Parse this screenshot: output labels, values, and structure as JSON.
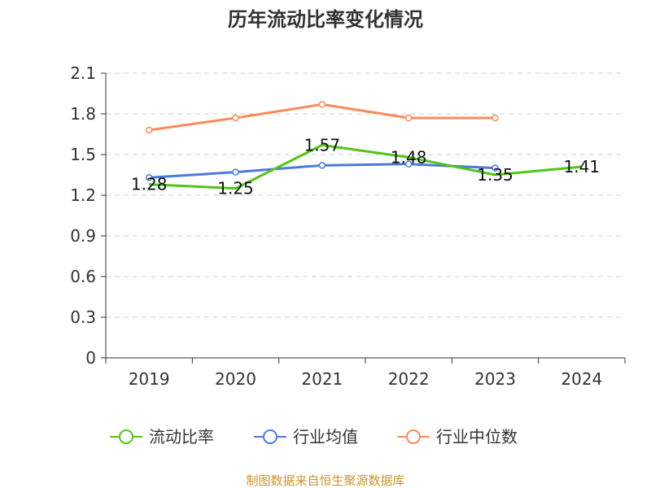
{
  "chart_data": {
    "type": "line",
    "title": "历年流动比率变化情况",
    "categories": [
      "2019",
      "2020",
      "2021",
      "2022",
      "2023",
      "2024"
    ],
    "y_ticks": [
      "0",
      "0.3",
      "0.6",
      "0.9",
      "1.2",
      "1.5",
      "1.8",
      "2.1"
    ],
    "ylim": [
      0,
      2.1
    ],
    "grid": true,
    "legend_position": "bottom",
    "series": [
      {
        "name": "流动比率",
        "color": "#52c41a",
        "values": [
          1.28,
          1.25,
          1.57,
          1.48,
          1.35,
          1.41
        ],
        "labels": [
          "1.28",
          "1.25",
          "1.57",
          "1.48",
          "1.35",
          "1.41"
        ]
      },
      {
        "name": "行业均值",
        "color": "#4a7bd8",
        "values": [
          1.33,
          1.37,
          1.42,
          1.43,
          1.4,
          null
        ]
      },
      {
        "name": "行业中位数",
        "color": "#f78c5a",
        "values": [
          1.68,
          1.77,
          1.87,
          1.77,
          1.77,
          null
        ]
      }
    ]
  },
  "footer": {
    "source": "制图数据来自恒生聚源数据库",
    "source_color": "#c8962e"
  }
}
